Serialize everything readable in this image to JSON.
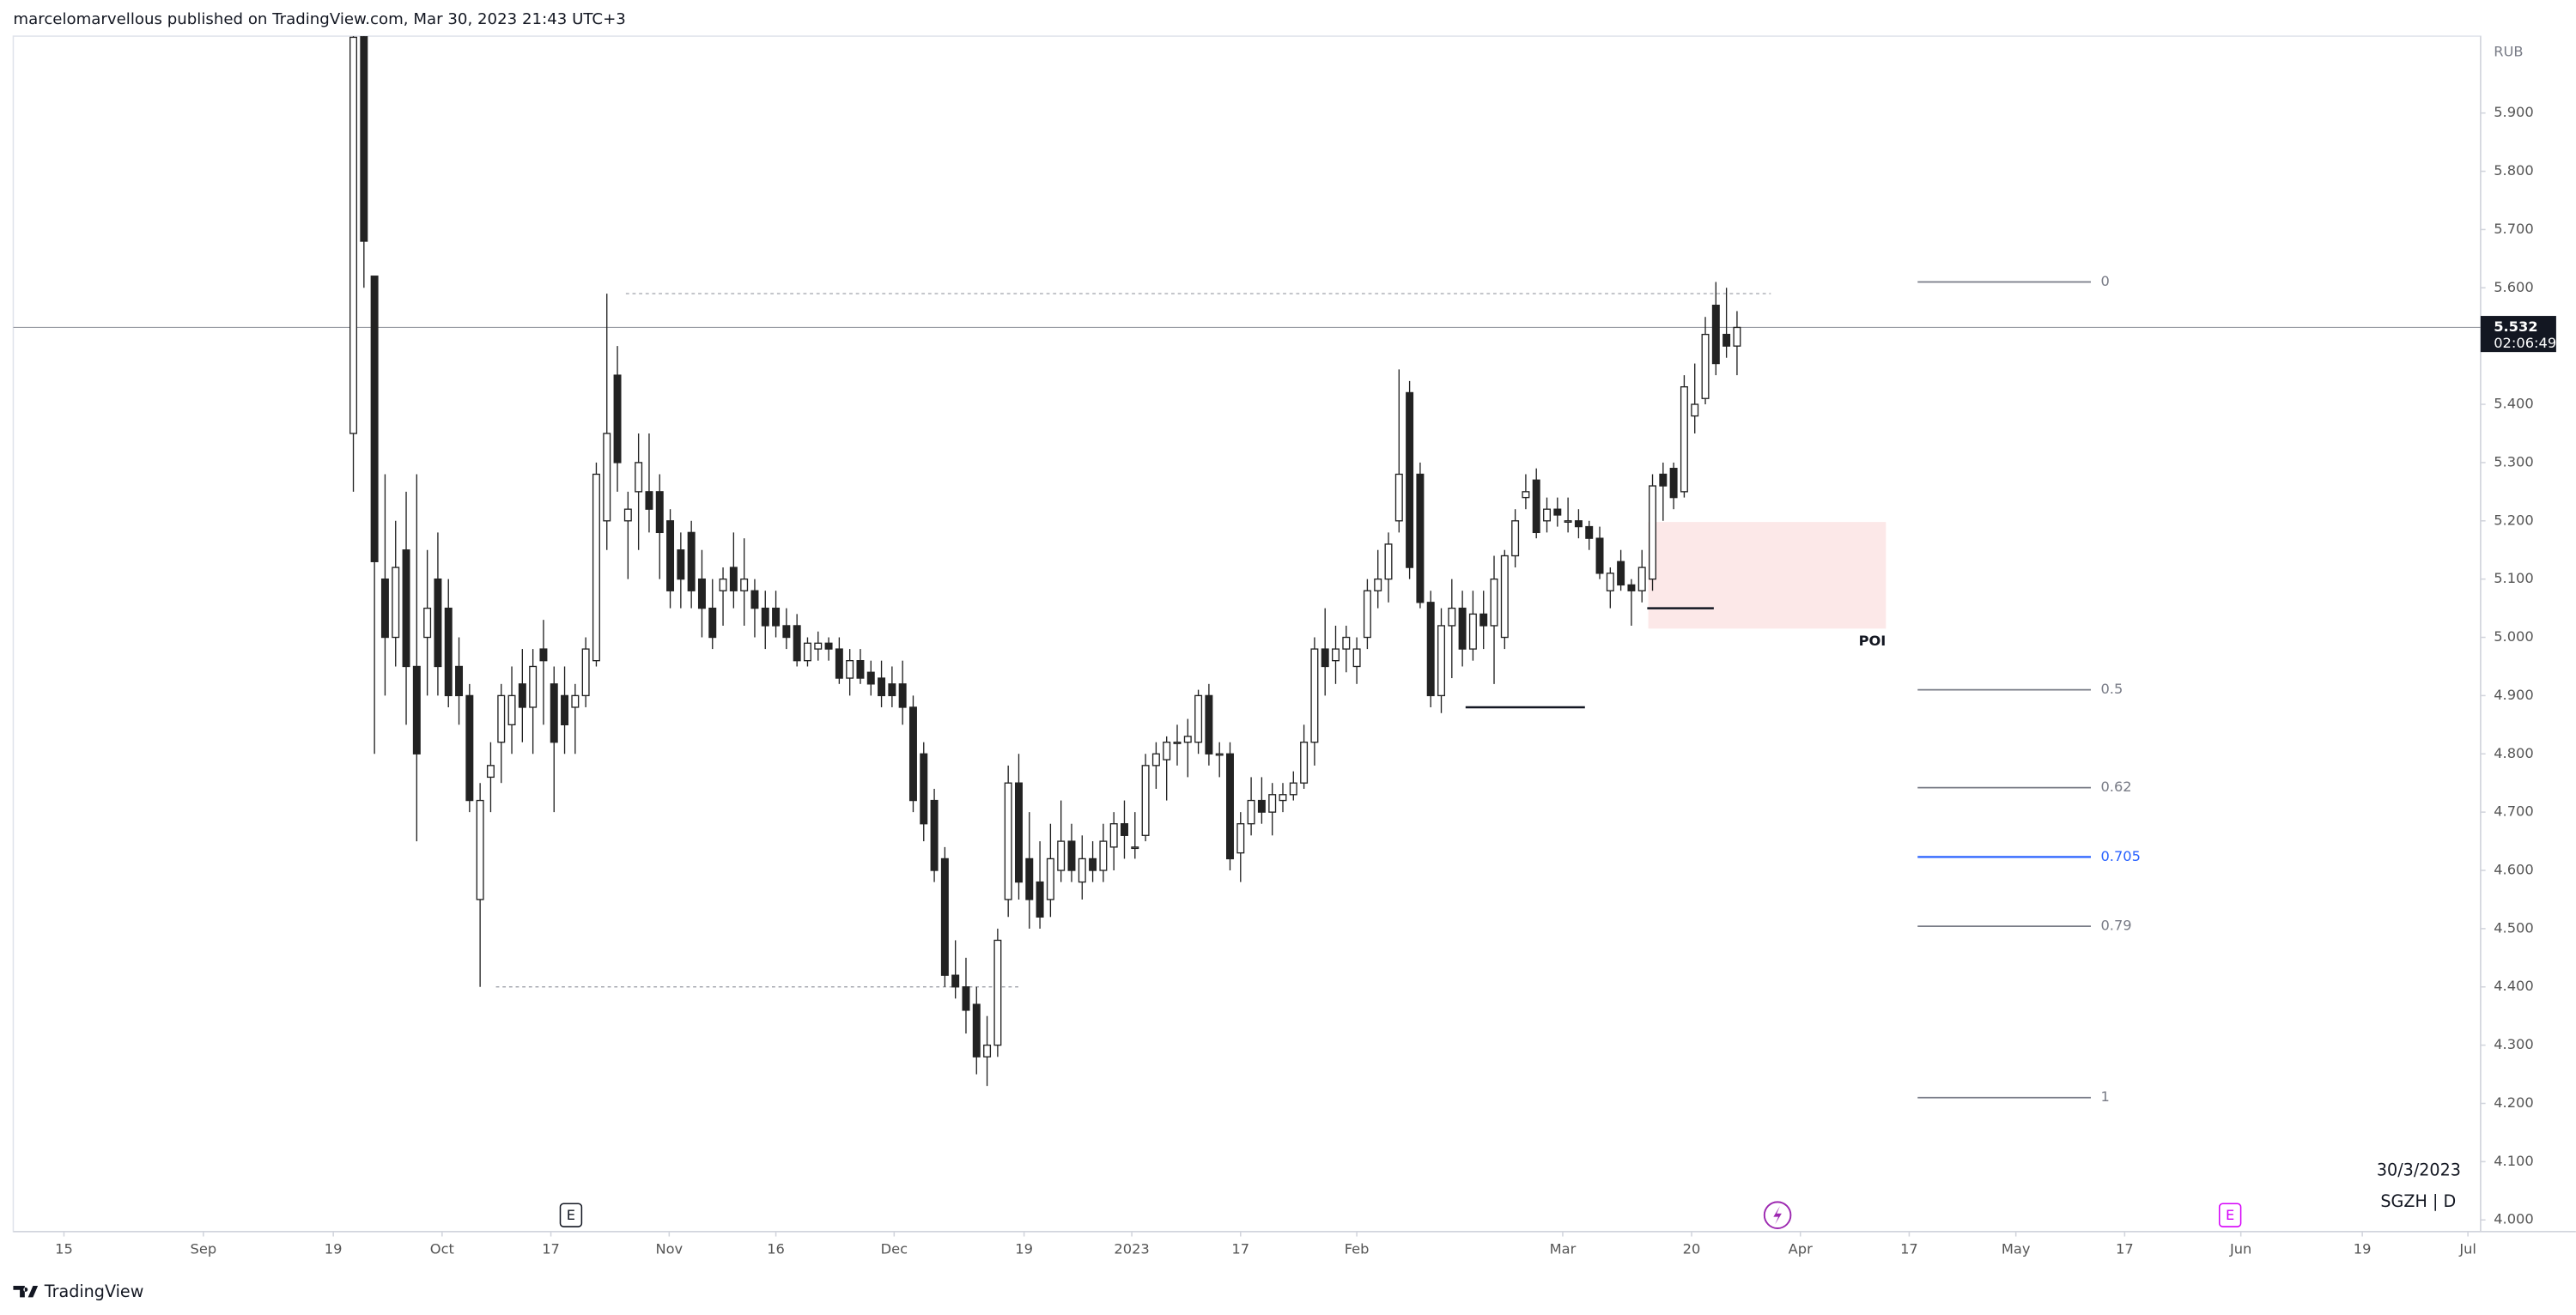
{
  "header": "marcelomarvellous published on TradingView.com, Mar 30, 2023 21:43 UTC+3",
  "footer_logo": "TradingView",
  "chart_data": {
    "type": "candlestick",
    "symbol_label": "SGZH | D",
    "date_label": "30/3/2023",
    "currency": "RUB",
    "last_price": {
      "value": 5.532,
      "label": "5.532"
    },
    "countdown": "02:06:49",
    "ylim": [
      3.98,
      6.032
    ],
    "xlim": [
      -32.2,
      201.4
    ],
    "yticks": [
      {
        "value": 4.0,
        "label": "4.000"
      },
      {
        "value": 4.1,
        "label": "4.100"
      },
      {
        "value": 4.2,
        "label": "4.200"
      },
      {
        "value": 4.3,
        "label": "4.300"
      },
      {
        "value": 4.4,
        "label": "4.400"
      },
      {
        "value": 4.5,
        "label": "4.500"
      },
      {
        "value": 4.6,
        "label": "4.600"
      },
      {
        "value": 4.7,
        "label": "4.700"
      },
      {
        "value": 4.8,
        "label": "4.800"
      },
      {
        "value": 4.9,
        "label": "4.900"
      },
      {
        "value": 5.0,
        "label": "5.000"
      },
      {
        "value": 5.1,
        "label": "5.100"
      },
      {
        "value": 5.2,
        "label": "5.200"
      },
      {
        "value": 5.3,
        "label": "5.300"
      },
      {
        "value": 5.4,
        "label": "5.400"
      },
      {
        "value": 5.5,
        "label": "5.500"
      },
      {
        "value": 5.6,
        "label": "5.600"
      },
      {
        "value": 5.7,
        "label": "5.700"
      },
      {
        "value": 5.8,
        "label": "5.800"
      },
      {
        "value": 5.9,
        "label": "5.900"
      }
    ],
    "xticks": [
      {
        "value": -27.4,
        "label": "15"
      },
      {
        "value": -14.2,
        "label": "Sep"
      },
      {
        "value": -1.9,
        "label": "19"
      },
      {
        "value": 8.4,
        "label": "Oct"
      },
      {
        "value": 18.7,
        "label": "17"
      },
      {
        "value": 29.9,
        "label": "Nov"
      },
      {
        "value": 40.0,
        "label": "16"
      },
      {
        "value": 51.2,
        "label": "Dec"
      },
      {
        "value": 63.5,
        "label": "19"
      },
      {
        "value": 73.7,
        "label": "2023"
      },
      {
        "value": 84.0,
        "label": "17"
      },
      {
        "value": 95.0,
        "label": "Feb"
      },
      {
        "value": 114.5,
        "label": "Mar"
      },
      {
        "value": 126.7,
        "label": "20"
      },
      {
        "value": 137.0,
        "label": "Apr"
      },
      {
        "value": 147.3,
        "label": "17"
      },
      {
        "value": 157.4,
        "label": "May"
      },
      {
        "value": 167.7,
        "label": "17"
      },
      {
        "value": 178.7,
        "label": "Jun"
      },
      {
        "value": 190.2,
        "label": "19"
      },
      {
        "value": 200.2,
        "label": "Jul"
      }
    ],
    "up_color": "#ffffff",
    "down_color": "#222222",
    "edge_color": "#222222",
    "candles": [
      {
        "open": 5.35,
        "high": 6.05,
        "low": 5.25,
        "close": 6.03
      },
      {
        "open": 6.05,
        "high": 6.05,
        "low": 5.6,
        "close": 5.68
      },
      {
        "open": 5.62,
        "high": 5.62,
        "low": 4.8,
        "close": 5.13
      },
      {
        "open": 5.1,
        "high": 5.28,
        "low": 4.9,
        "close": 5.0
      },
      {
        "open": 5.0,
        "high": 5.2,
        "low": 4.95,
        "close": 5.12
      },
      {
        "open": 5.15,
        "high": 5.25,
        "low": 4.85,
        "close": 4.95
      },
      {
        "open": 4.95,
        "high": 5.28,
        "low": 4.65,
        "close": 4.8
      },
      {
        "open": 5.0,
        "high": 5.15,
        "low": 4.9,
        "close": 5.05
      },
      {
        "open": 5.1,
        "high": 5.18,
        "low": 4.9,
        "close": 4.95
      },
      {
        "open": 5.05,
        "high": 5.1,
        "low": 4.88,
        "close": 4.9
      },
      {
        "open": 4.95,
        "high": 5.0,
        "low": 4.85,
        "close": 4.9
      },
      {
        "open": 4.9,
        "high": 4.92,
        "low": 4.7,
        "close": 4.72
      },
      {
        "open": 4.55,
        "high": 4.75,
        "low": 4.4,
        "close": 4.72
      },
      {
        "open": 4.76,
        "high": 4.82,
        "low": 4.7,
        "close": 4.78
      },
      {
        "open": 4.82,
        "high": 4.92,
        "low": 4.75,
        "close": 4.9
      },
      {
        "open": 4.85,
        "high": 4.95,
        "low": 4.8,
        "close": 4.9
      },
      {
        "open": 4.92,
        "high": 4.98,
        "low": 4.82,
        "close": 4.88
      },
      {
        "open": 4.88,
        "high": 4.98,
        "low": 4.8,
        "close": 4.95
      },
      {
        "open": 4.98,
        "high": 5.03,
        "low": 4.85,
        "close": 4.96
      },
      {
        "open": 4.92,
        "high": 4.95,
        "low": 4.7,
        "close": 4.82
      },
      {
        "open": 4.9,
        "high": 4.95,
        "low": 4.8,
        "close": 4.85
      },
      {
        "open": 4.88,
        "high": 4.92,
        "low": 4.8,
        "close": 4.9
      },
      {
        "open": 4.9,
        "high": 5.0,
        "low": 4.88,
        "close": 4.98
      },
      {
        "open": 4.96,
        "high": 5.3,
        "low": 4.95,
        "close": 5.28
      },
      {
        "open": 5.2,
        "high": 5.59,
        "low": 5.15,
        "close": 5.35
      },
      {
        "open": 5.45,
        "high": 5.5,
        "low": 5.25,
        "close": 5.3
      },
      {
        "open": 5.2,
        "high": 5.25,
        "low": 5.1,
        "close": 5.22
      },
      {
        "open": 5.25,
        "high": 5.35,
        "low": 5.15,
        "close": 5.3
      },
      {
        "open": 5.25,
        "high": 5.35,
        "low": 5.18,
        "close": 5.22
      },
      {
        "open": 5.25,
        "high": 5.28,
        "low": 5.1,
        "close": 5.18
      },
      {
        "open": 5.2,
        "high": 5.22,
        "low": 5.05,
        "close": 5.08
      },
      {
        "open": 5.15,
        "high": 5.18,
        "low": 5.05,
        "close": 5.1
      },
      {
        "open": 5.18,
        "high": 5.2,
        "low": 5.05,
        "close": 5.08
      },
      {
        "open": 5.1,
        "high": 5.15,
        "low": 5.0,
        "close": 5.05
      },
      {
        "open": 5.05,
        "high": 5.1,
        "low": 4.98,
        "close": 5.0
      },
      {
        "open": 5.08,
        "high": 5.12,
        "low": 5.02,
        "close": 5.1
      },
      {
        "open": 5.12,
        "high": 5.18,
        "low": 5.05,
        "close": 5.08
      },
      {
        "open": 5.08,
        "high": 5.17,
        "low": 5.02,
        "close": 5.1
      },
      {
        "open": 5.08,
        "high": 5.1,
        "low": 5.0,
        "close": 5.05
      },
      {
        "open": 5.05,
        "high": 5.08,
        "low": 4.98,
        "close": 5.02
      },
      {
        "open": 5.05,
        "high": 5.08,
        "low": 5.0,
        "close": 5.02
      },
      {
        "open": 5.02,
        "high": 5.05,
        "low": 4.98,
        "close": 5.0
      },
      {
        "open": 5.02,
        "high": 5.04,
        "low": 4.95,
        "close": 4.96
      },
      {
        "open": 4.96,
        "high": 5.0,
        "low": 4.95,
        "close": 4.99
      },
      {
        "open": 4.98,
        "high": 5.01,
        "low": 4.96,
        "close": 4.99
      },
      {
        "open": 4.99,
        "high": 5.0,
        "low": 4.96,
        "close": 4.98
      },
      {
        "open": 4.98,
        "high": 5.0,
        "low": 4.92,
        "close": 4.93
      },
      {
        "open": 4.93,
        "high": 4.98,
        "low": 4.9,
        "close": 4.96
      },
      {
        "open": 4.96,
        "high": 4.98,
        "low": 4.92,
        "close": 4.93
      },
      {
        "open": 4.94,
        "high": 4.96,
        "low": 4.9,
        "close": 4.92
      },
      {
        "open": 4.93,
        "high": 4.96,
        "low": 4.88,
        "close": 4.9
      },
      {
        "open": 4.92,
        "high": 4.95,
        "low": 4.88,
        "close": 4.9
      },
      {
        "open": 4.92,
        "high": 4.96,
        "low": 4.85,
        "close": 4.88
      },
      {
        "open": 4.88,
        "high": 4.9,
        "low": 4.7,
        "close": 4.72
      },
      {
        "open": 4.8,
        "high": 4.82,
        "low": 4.65,
        "close": 4.68
      },
      {
        "open": 4.72,
        "high": 4.74,
        "low": 4.58,
        "close": 4.6
      },
      {
        "open": 4.62,
        "high": 4.64,
        "low": 4.4,
        "close": 4.42
      },
      {
        "open": 4.42,
        "high": 4.48,
        "low": 4.38,
        "close": 4.4
      },
      {
        "open": 4.4,
        "high": 4.45,
        "low": 4.32,
        "close": 4.36
      },
      {
        "open": 4.37,
        "high": 4.4,
        "low": 4.25,
        "close": 4.28
      },
      {
        "open": 4.28,
        "high": 4.35,
        "low": 4.23,
        "close": 4.3
      },
      {
        "open": 4.3,
        "high": 4.5,
        "low": 4.28,
        "close": 4.48
      },
      {
        "open": 4.55,
        "high": 4.78,
        "low": 4.52,
        "close": 4.75
      },
      {
        "open": 4.75,
        "high": 4.8,
        "low": 4.55,
        "close": 4.58
      },
      {
        "open": 4.62,
        "high": 4.7,
        "low": 4.5,
        "close": 4.55
      },
      {
        "open": 4.58,
        "high": 4.65,
        "low": 4.5,
        "close": 4.52
      },
      {
        "open": 4.55,
        "high": 4.68,
        "low": 4.52,
        "close": 4.62
      },
      {
        "open": 4.6,
        "high": 4.72,
        "low": 4.58,
        "close": 4.65
      },
      {
        "open": 4.65,
        "high": 4.68,
        "low": 4.58,
        "close": 4.6
      },
      {
        "open": 4.58,
        "high": 4.66,
        "low": 4.55,
        "close": 4.62
      },
      {
        "open": 4.62,
        "high": 4.65,
        "low": 4.58,
        "close": 4.6
      },
      {
        "open": 4.6,
        "high": 4.68,
        "low": 4.58,
        "close": 4.65
      },
      {
        "open": 4.64,
        "high": 4.7,
        "low": 4.6,
        "close": 4.68
      },
      {
        "open": 4.68,
        "high": 4.72,
        "low": 4.62,
        "close": 4.66
      },
      {
        "open": 4.64,
        "high": 4.7,
        "low": 4.62,
        "close": 4.64
      },
      {
        "open": 4.66,
        "high": 4.8,
        "low": 4.65,
        "close": 4.78
      },
      {
        "open": 4.78,
        "high": 4.82,
        "low": 4.74,
        "close": 4.8
      },
      {
        "open": 4.79,
        "high": 4.83,
        "low": 4.72,
        "close": 4.82
      },
      {
        "open": 4.82,
        "high": 4.85,
        "low": 4.78,
        "close": 4.82
      },
      {
        "open": 4.82,
        "high": 4.86,
        "low": 4.76,
        "close": 4.83
      },
      {
        "open": 4.82,
        "high": 4.91,
        "low": 4.8,
        "close": 4.9
      },
      {
        "open": 4.9,
        "high": 4.92,
        "low": 4.78,
        "close": 4.8
      },
      {
        "open": 4.8,
        "high": 4.82,
        "low": 4.76,
        "close": 4.8
      },
      {
        "open": 4.8,
        "high": 4.82,
        "low": 4.6,
        "close": 4.62
      },
      {
        "open": 4.63,
        "high": 4.7,
        "low": 4.58,
        "close": 4.68
      },
      {
        "open": 4.68,
        "high": 4.76,
        "low": 4.66,
        "close": 4.72
      },
      {
        "open": 4.72,
        "high": 4.76,
        "low": 4.68,
        "close": 4.7
      },
      {
        "open": 4.7,
        "high": 4.75,
        "low": 4.66,
        "close": 4.73
      },
      {
        "open": 4.72,
        "high": 4.75,
        "low": 4.7,
        "close": 4.73
      },
      {
        "open": 4.73,
        "high": 4.77,
        "low": 4.72,
        "close": 4.75
      },
      {
        "open": 4.75,
        "high": 4.85,
        "low": 4.74,
        "close": 4.82
      },
      {
        "open": 4.82,
        "high": 5.0,
        "low": 4.78,
        "close": 4.98
      },
      {
        "open": 4.98,
        "high": 5.05,
        "low": 4.9,
        "close": 4.95
      },
      {
        "open": 4.96,
        "high": 5.02,
        "low": 4.92,
        "close": 4.98
      },
      {
        "open": 4.98,
        "high": 5.02,
        "low": 4.94,
        "close": 5.0
      },
      {
        "open": 4.95,
        "high": 5.0,
        "low": 4.92,
        "close": 4.98
      },
      {
        "open": 5.0,
        "high": 5.1,
        "low": 4.98,
        "close": 5.08
      },
      {
        "open": 5.08,
        "high": 5.15,
        "low": 5.05,
        "close": 5.1
      },
      {
        "open": 5.1,
        "high": 5.18,
        "low": 5.06,
        "close": 5.16
      },
      {
        "open": 5.2,
        "high": 5.46,
        "low": 5.18,
        "close": 5.28
      },
      {
        "open": 5.42,
        "high": 5.44,
        "low": 5.1,
        "close": 5.12
      },
      {
        "open": 5.28,
        "high": 5.3,
        "low": 5.05,
        "close": 5.06
      },
      {
        "open": 5.06,
        "high": 5.08,
        "low": 4.88,
        "close": 4.9
      },
      {
        "open": 4.9,
        "high": 5.05,
        "low": 4.87,
        "close": 5.02
      },
      {
        "open": 5.02,
        "high": 5.1,
        "low": 4.93,
        "close": 5.05
      },
      {
        "open": 5.05,
        "high": 5.08,
        "low": 4.95,
        "close": 4.98
      },
      {
        "open": 4.98,
        "high": 5.08,
        "low": 4.96,
        "close": 5.04
      },
      {
        "open": 5.04,
        "high": 5.08,
        "low": 4.98,
        "close": 5.02
      },
      {
        "open": 5.02,
        "high": 5.14,
        "low": 4.92,
        "close": 5.1
      },
      {
        "open": 5.0,
        "high": 5.15,
        "low": 4.98,
        "close": 5.14
      },
      {
        "open": 5.14,
        "high": 5.22,
        "low": 5.12,
        "close": 5.2
      },
      {
        "open": 5.24,
        "high": 5.28,
        "low": 5.22,
        "close": 5.25
      },
      {
        "open": 5.27,
        "high": 5.29,
        "low": 5.17,
        "close": 5.18
      },
      {
        "open": 5.2,
        "high": 5.24,
        "low": 5.18,
        "close": 5.22
      },
      {
        "open": 5.22,
        "high": 5.24,
        "low": 5.19,
        "close": 5.21
      },
      {
        "open": 5.2,
        "high": 5.24,
        "low": 5.18,
        "close": 5.2
      },
      {
        "open": 5.2,
        "high": 5.22,
        "low": 5.17,
        "close": 5.19
      },
      {
        "open": 5.19,
        "high": 5.2,
        "low": 5.15,
        "close": 5.17
      },
      {
        "open": 5.17,
        "high": 5.19,
        "low": 5.1,
        "close": 5.11
      },
      {
        "open": 5.08,
        "high": 5.12,
        "low": 5.05,
        "close": 5.11
      },
      {
        "open": 5.13,
        "high": 5.15,
        "low": 5.08,
        "close": 5.09
      },
      {
        "open": 5.09,
        "high": 5.1,
        "low": 5.02,
        "close": 5.08
      },
      {
        "open": 5.08,
        "high": 5.15,
        "low": 5.06,
        "close": 5.12
      },
      {
        "open": 5.1,
        "high": 5.28,
        "low": 5.08,
        "close": 5.26
      },
      {
        "open": 5.28,
        "high": 5.3,
        "low": 5.2,
        "close": 5.26
      },
      {
        "open": 5.29,
        "high": 5.3,
        "low": 5.22,
        "close": 5.24
      },
      {
        "open": 5.25,
        "high": 5.45,
        "low": 5.24,
        "close": 5.43
      },
      {
        "open": 5.38,
        "high": 5.47,
        "low": 5.35,
        "close": 5.4
      },
      {
        "open": 5.41,
        "high": 5.55,
        "low": 5.4,
        "close": 5.52
      },
      {
        "open": 5.57,
        "high": 5.61,
        "low": 5.45,
        "close": 5.47
      },
      {
        "open": 5.52,
        "high": 5.6,
        "low": 5.48,
        "close": 5.5
      },
      {
        "open": 5.5,
        "high": 5.56,
        "low": 5.45,
        "close": 5.532
      }
    ],
    "fib": {
      "from": 5.61,
      "to": 4.21,
      "x": [
        148.1,
        164.5
      ],
      "levels": [
        {
          "level": 0,
          "color": "#787b86"
        },
        {
          "level": 0.5,
          "color": "#787b86"
        },
        {
          "level": 0.62,
          "color": "#787b86"
        },
        {
          "level": 0.705,
          "color": "#2962ff"
        },
        {
          "level": 0.79,
          "color": "#787b86"
        },
        {
          "level": 1,
          "color": "#787b86"
        }
      ]
    },
    "dashed_lines": [
      {
        "price": 5.59,
        "x": [
          25.8,
          134.2
        ]
      },
      {
        "price": 4.4,
        "x": [
          13.5,
          63.0
        ]
      }
    ],
    "solid_lines": [
      {
        "price": 4.88,
        "x": [
          105.3,
          116.6
        ]
      },
      {
        "price": 5.05,
        "x": [
          122.5,
          128.8
        ]
      }
    ],
    "zone": {
      "label": "POI",
      "x": [
        122.6,
        145.1
      ],
      "price": [
        5.015,
        5.198
      ],
      "color": "#fce8e8"
    },
    "event_markers": [
      "E",
      "E"
    ]
  }
}
